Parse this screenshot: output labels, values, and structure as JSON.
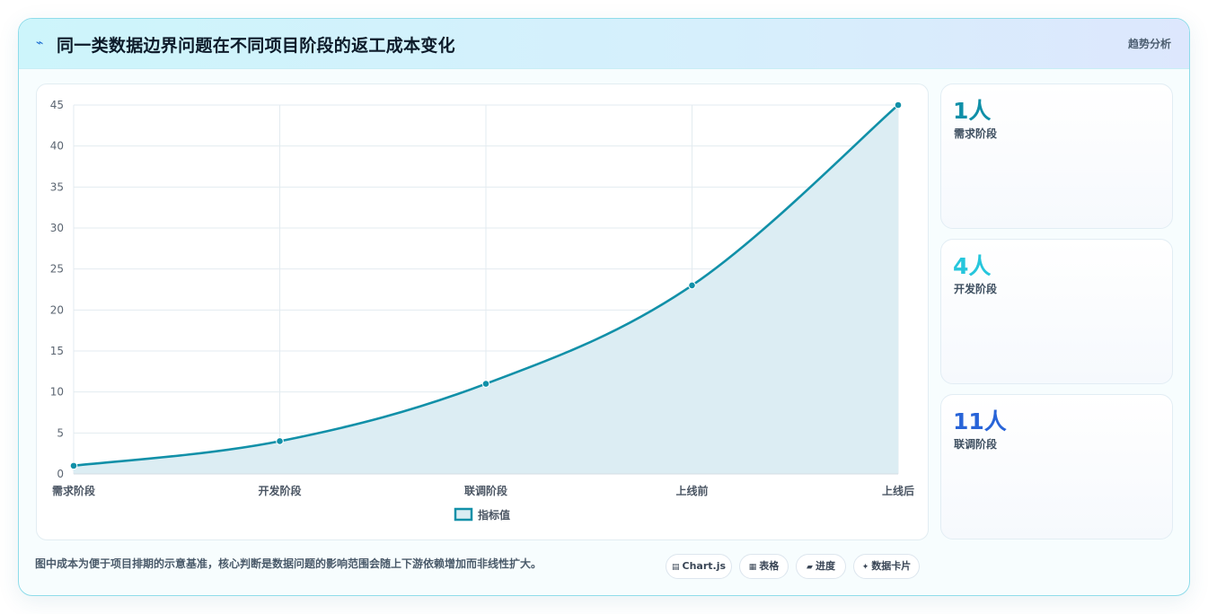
{
  "header": {
    "icon": "trend-line-icon",
    "title": "同一类数据边界问题在不同项目阶段的返工成本变化",
    "tag": "趋势分析"
  },
  "chart_data": {
    "type": "area",
    "categories": [
      "需求阶段",
      "开发阶段",
      "联调阶段",
      "上线前",
      "上线后"
    ],
    "series": [
      {
        "name": "指标值",
        "values": [
          1,
          4,
          11,
          23,
          45
        ]
      }
    ],
    "yticks": [
      "0",
      "5",
      "10",
      "15",
      "20",
      "25",
      "30",
      "35",
      "40",
      "45"
    ],
    "ylim": [
      0,
      45
    ],
    "grid": true,
    "legend_position": "bottom",
    "colors": {
      "line": "#1190a8",
      "fill": "#dcedf3",
      "grid": "#e3ebf0"
    }
  },
  "stats": [
    {
      "value": "1人",
      "label": "需求阶段",
      "color": "#0f8fa8"
    },
    {
      "value": "4人",
      "label": "开发阶段",
      "color": "#26c6dc"
    },
    {
      "value": "11人",
      "label": "联调阶段",
      "color": "#2864d8"
    }
  ],
  "footnote": "图中成本为便于项目排期的示意基准，核心判断是数据问题的影响范围会随上下游依赖增加而非线性扩大。",
  "pills": [
    {
      "icon": "chart-icon",
      "glyph": "▤",
      "label": "Chart.js"
    },
    {
      "icon": "table-icon",
      "glyph": "▦",
      "label": "表格"
    },
    {
      "icon": "progress-icon",
      "glyph": "▰",
      "label": "进度"
    },
    {
      "icon": "data-card-icon",
      "glyph": "✦",
      "label": "数据卡片"
    }
  ]
}
